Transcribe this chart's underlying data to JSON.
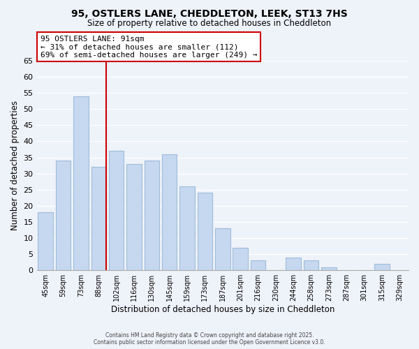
{
  "title_line1": "95, OSTLERS LANE, CHEDDLETON, LEEK, ST13 7HS",
  "title_line2": "Size of property relative to detached houses in Cheddleton",
  "xlabel": "Distribution of detached houses by size in Cheddleton",
  "ylabel": "Number of detached properties",
  "bar_labels": [
    "45sqm",
    "59sqm",
    "73sqm",
    "88sqm",
    "102sqm",
    "116sqm",
    "130sqm",
    "145sqm",
    "159sqm",
    "173sqm",
    "187sqm",
    "201sqm",
    "216sqm",
    "230sqm",
    "244sqm",
    "258sqm",
    "273sqm",
    "287sqm",
    "301sqm",
    "315sqm",
    "329sqm"
  ],
  "bar_values": [
    18,
    34,
    54,
    32,
    37,
    33,
    34,
    36,
    26,
    24,
    13,
    7,
    3,
    0,
    4,
    3,
    1,
    0,
    0,
    2,
    0
  ],
  "bar_color": "#c5d8f0",
  "bar_edgecolor": "#a0bcd8",
  "highlight_index": 3,
  "highlight_line_color": "#cc0000",
  "ylim": [
    0,
    65
  ],
  "yticks": [
    0,
    5,
    10,
    15,
    20,
    25,
    30,
    35,
    40,
    45,
    50,
    55,
    60,
    65
  ],
  "annotation_title": "95 OSTLERS LANE: 91sqm",
  "annotation_line1": "← 31% of detached houses are smaller (112)",
  "annotation_line2": "69% of semi-detached houses are larger (249) →",
  "annotation_box_color": "#ffffff",
  "annotation_box_edgecolor": "#cc0000",
  "footer_line1": "Contains HM Land Registry data © Crown copyright and database right 2025.",
  "footer_line2": "Contains public sector information licensed under the Open Government Licence v3.0.",
  "background_color": "#eef2f9",
  "grid_color": "#ffffff"
}
